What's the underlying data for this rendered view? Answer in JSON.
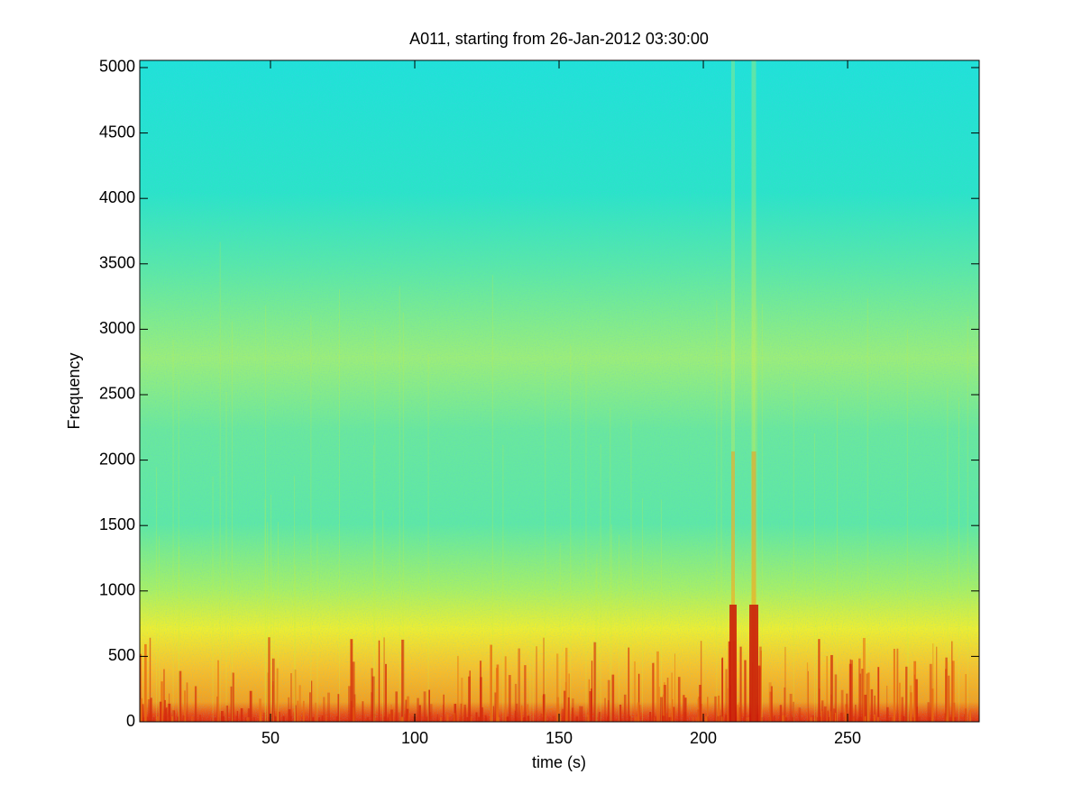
{
  "chart_data": {
    "type": "spectrogram",
    "title": "A011, starting from 26-Jan-2012 03:30:00",
    "x_label": "time (s)",
    "y_label": "Frequency",
    "xlim": [
      4.7,
      295.6
    ],
    "xticks": [
      50,
      100,
      150,
      200,
      250
    ],
    "ylim": [
      0,
      5055
    ],
    "yticks": [
      0,
      500,
      1000,
      1500,
      2000,
      2500,
      3000,
      3500,
      4000,
      4500,
      5000
    ],
    "colormap": "jet",
    "grid": false
  }
}
